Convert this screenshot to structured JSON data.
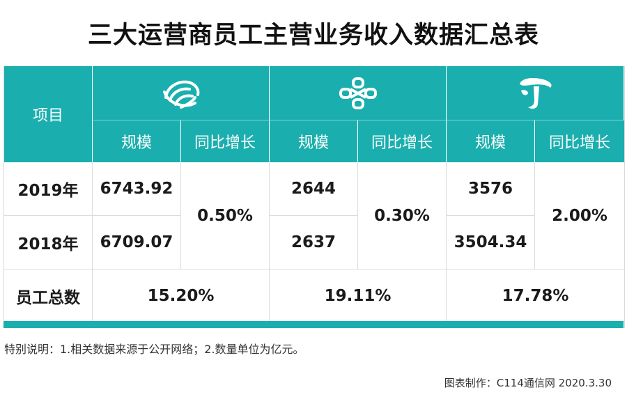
{
  "title": "三大运营商员工主营业务收入数据汇总表",
  "header": {
    "item_label": "项目",
    "operators": [
      {
        "logo": "china-mobile-logo",
        "scale_label": "规模",
        "growth_label": "同比增长"
      },
      {
        "logo": "china-unicom-logo",
        "scale_label": "规模",
        "growth_label": "同比增长"
      },
      {
        "logo": "china-telecom-logo",
        "scale_label": "规模",
        "growth_label": "同比增长"
      }
    ]
  },
  "rows": {
    "y2019": {
      "label": "2019年",
      "values": [
        "6743.92",
        "2644",
        "3576"
      ]
    },
    "y2018": {
      "label": "2018年",
      "values": [
        "6709.07",
        "2637",
        "3504.34"
      ]
    },
    "growth": [
      "0.50%",
      "0.30%",
      "2.00%"
    ],
    "staff": {
      "label": "员工总数",
      "values": [
        "15.20%",
        "19.11%",
        "17.78%"
      ]
    }
  },
  "note": "特别说明：1.相关数据来源于公开网络；2.数量单位为亿元。",
  "credit": "图表制作：C114通信网 2020.3.30",
  "colors": {
    "teal": "#1aafae",
    "white": "#ffffff"
  }
}
